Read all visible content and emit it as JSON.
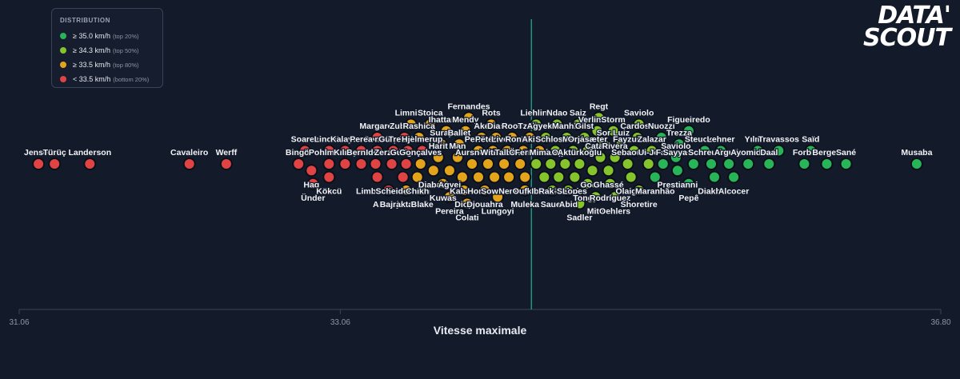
{
  "legend": {
    "title": "DISTRIBUTION",
    "items": [
      {
        "label": "≥ 35.0 km/h",
        "sub": "(top 20%)",
        "color": "#27b558"
      },
      {
        "label": "≥ 34.3 km/h",
        "sub": "(top 50%)",
        "color": "#86c42c"
      },
      {
        "label": "≥ 33.5 km/h",
        "sub": "(top 80%)",
        "color": "#e3a41b"
      },
      {
        "label": "< 33.5 km/h",
        "sub": "(bottom 20%)",
        "color": "#e04343"
      }
    ]
  },
  "logo": {
    "line1": "DATA'",
    "line2": "SCOUT"
  },
  "chart_data": {
    "type": "scatter",
    "xlabel": "Vitesse maximale",
    "xlim": [
      31.06,
      36.8
    ],
    "xticks": [
      "31.06",
      "33.06",
      "36.80"
    ],
    "median": 34.25,
    "points": [
      {
        "name": "Jensen",
        "x": 31.18,
        "c": "red"
      },
      {
        "name": "Türüç",
        "x": 31.28,
        "c": "red"
      },
      {
        "name": "Landerson",
        "x": 31.5,
        "c": "red"
      },
      {
        "name": "Cavaleiro",
        "x": 32.12,
        "c": "red"
      },
      {
        "name": "Werff",
        "x": 32.35,
        "c": "red"
      },
      {
        "name": "Bingöl",
        "x": 32.8,
        "c": "red"
      },
      {
        "name": "Pohlmann",
        "x": 32.99,
        "c": "red"
      },
      {
        "name": "Soares",
        "x": 32.84,
        "c": "red"
      },
      {
        "name": "Haq",
        "x": 32.88,
        "c": "red"
      },
      {
        "name": "Ünder",
        "x": 32.89,
        "c": "red"
      },
      {
        "name": "Lincoln",
        "x": 32.99,
        "c": "red"
      },
      {
        "name": "Kılınç",
        "x": 33.09,
        "c": "red"
      },
      {
        "name": "Kökcü",
        "x": 32.99,
        "c": "red"
      },
      {
        "name": "Kalaycı",
        "x": 33.09,
        "c": "red"
      },
      {
        "name": "Bernier",
        "x": 33.19,
        "c": "red"
      },
      {
        "name": "Gomes",
        "x": 33.29,
        "c": "red"
      },
      {
        "name": "Idelo",
        "x": 33.28,
        "c": "red"
      },
      {
        "name": "Perea",
        "x": 33.19,
        "c": "red"
      },
      {
        "name": "Limbombe",
        "x": 33.29,
        "c": "red"
      },
      {
        "name": "Margaret",
        "x": 33.29,
        "c": "red"
      },
      {
        "name": "Zerzinho",
        "x": 33.38,
        "c": "red"
      },
      {
        "name": "Arcanjo",
        "x": 33.36,
        "c": "red"
      },
      {
        "name": "Gürpüz",
        "x": 33.39,
        "c": "red"
      },
      {
        "name": "Trenskow",
        "x": 33.48,
        "c": "red"
      },
      {
        "name": "Scheidemann",
        "x": 33.45,
        "c": "red"
      },
      {
        "name": "Hjelmerup",
        "x": 33.57,
        "c": "red"
      },
      {
        "name": "Zubkov",
        "x": 33.46,
        "c": "red"
      },
      {
        "name": "Gudgon",
        "x": 33.47,
        "c": "red"
      },
      {
        "name": "Bajraktarević",
        "x": 33.47,
        "c": "yellow"
      },
      {
        "name": "Rashica",
        "x": 33.55,
        "c": "yellow"
      },
      {
        "name": "Limnios",
        "x": 33.5,
        "c": "yellow"
      },
      {
        "name": "Chikh",
        "x": 33.54,
        "c": "yellow"
      },
      {
        "name": "Blake",
        "x": 33.57,
        "c": "yellow"
      },
      {
        "name": "Gonçalves",
        "x": 33.56,
        "c": "yellow"
      },
      {
        "name": "Stoica",
        "x": 33.62,
        "c": "yellow"
      },
      {
        "name": "Diabaté",
        "x": 33.64,
        "c": "yellow"
      },
      {
        "name": "Suray",
        "x": 33.69,
        "c": "yellow"
      },
      {
        "name": "Harit",
        "x": 33.67,
        "c": "yellow"
      },
      {
        "name": "Kuwas",
        "x": 33.7,
        "c": "yellow"
      },
      {
        "name": "Ihattaren",
        "x": 33.72,
        "c": "yellow"
      },
      {
        "name": "Agyei",
        "x": 33.74,
        "c": "yellow"
      },
      {
        "name": "Pereira",
        "x": 33.74,
        "c": "yellow"
      },
      {
        "name": "Ballet",
        "x": 33.8,
        "c": "yellow"
      },
      {
        "name": "Man",
        "x": 33.79,
        "c": "yellow"
      },
      {
        "name": "Kabak",
        "x": 33.82,
        "c": "yellow"
      },
      {
        "name": "Diop",
        "x": 33.83,
        "c": "yellow"
      },
      {
        "name": "Fernandes",
        "x": 33.86,
        "c": "yellow"
      },
      {
        "name": "Mendy",
        "x": 33.84,
        "c": "yellow"
      },
      {
        "name": "Aursnes",
        "x": 33.88,
        "c": "yellow"
      },
      {
        "name": "Colati",
        "x": 33.85,
        "c": "yellow"
      },
      {
        "name": "Perišić",
        "x": 33.92,
        "c": "yellow"
      },
      {
        "name": "Horta",
        "x": 33.92,
        "c": "yellow"
      },
      {
        "name": "Aké",
        "x": 33.94,
        "c": "yellow"
      },
      {
        "name": "Djouahra",
        "x": 33.96,
        "c": "yellow"
      },
      {
        "name": "Witi",
        "x": 33.98,
        "c": "yellow"
      },
      {
        "name": "Rots",
        "x": 34.0,
        "c": "yellow"
      },
      {
        "name": "Petersen",
        "x": 34.01,
        "c": "yellow"
      },
      {
        "name": "Sowah",
        "x": 34.02,
        "c": "yellow"
      },
      {
        "name": "Dias",
        "x": 34.03,
        "c": "yellow"
      },
      {
        "name": "Lungoyi",
        "x": 34.04,
        "c": "yellow"
      },
      {
        "name": "Livolant",
        "x": 34.1,
        "c": "yellow"
      },
      {
        "name": "Talbi",
        "x": 34.08,
        "c": "yellow"
      },
      {
        "name": "Nene",
        "x": 34.11,
        "c": "yellow"
      },
      {
        "name": "Roos",
        "x": 34.13,
        "c": "yellow"
      },
      {
        "name": "Ömür",
        "x": 34.18,
        "c": "yellow"
      },
      {
        "name": "Rondoso",
        "x": 34.2,
        "c": "yellow"
      },
      {
        "name": "Oufkir",
        "x": 34.21,
        "c": "yellow"
      },
      {
        "name": "Tzolis",
        "x": 34.24,
        "c": "yellow"
      },
      {
        "name": "Akinsola",
        "x": 34.3,
        "c": "yellow"
      },
      {
        "name": "Muleka",
        "x": 34.21,
        "c": "yellow"
      },
      {
        "name": "Fernandes",
        "x": 34.28,
        "c": "green2"
      },
      {
        "name": "Liehline",
        "x": 34.28,
        "c": "green2"
      },
      {
        "name": "Ibuoré",
        "x": 34.33,
        "c": "green2"
      },
      {
        "name": "Agyekum",
        "x": 34.34,
        "c": "green2"
      },
      {
        "name": "Mimaroglu",
        "x": 34.37,
        "c": "green2"
      },
      {
        "name": "Rak-Sakyi",
        "x": 34.42,
        "c": "green2"
      },
      {
        "name": "Sauer",
        "x": 34.38,
        "c": "green2"
      },
      {
        "name": "Schlosser",
        "x": 34.4,
        "c": "green2"
      },
      {
        "name": "Manhlo",
        "x": 34.47,
        "c": "green2"
      },
      {
        "name": "Opoku",
        "x": 34.46,
        "c": "green2"
      },
      {
        "name": "Ndao",
        "x": 34.41,
        "c": "green2"
      },
      {
        "name": "Abid",
        "x": 34.48,
        "c": "green2"
      },
      {
        "name": "Lopes",
        "x": 34.52,
        "c": "green2"
      },
      {
        "name": "Mané",
        "x": 34.51,
        "c": "green2"
      },
      {
        "name": "Aktürkoğlu",
        "x": 34.55,
        "c": "green2"
      },
      {
        "name": "Sadler",
        "x": 34.55,
        "c": "green2"
      },
      {
        "name": "Saiz",
        "x": 34.54,
        "c": "green2"
      },
      {
        "name": "Gilst",
        "x": 34.58,
        "c": "green2"
      },
      {
        "name": "Orjasæter",
        "x": 34.6,
        "c": "green2"
      },
      {
        "name": "Godts",
        "x": 34.63,
        "c": "green2"
      },
      {
        "name": "Tongya",
        "x": 34.6,
        "c": "green2"
      },
      {
        "name": "Regt",
        "x": 34.67,
        "c": "green2"
      },
      {
        "name": "Mito",
        "x": 34.65,
        "c": "green2"
      },
      {
        "name": "Verlinden",
        "x": 34.66,
        "c": "green2"
      },
      {
        "name": "Catamo",
        "x": 34.68,
        "c": "green2"
      },
      {
        "name": "Sor",
        "x": 34.7,
        "c": "green2"
      },
      {
        "name": "Ghassé",
        "x": 34.73,
        "c": "green2"
      },
      {
        "name": "Storm",
        "x": 34.76,
        "c": "green2"
      },
      {
        "name": "Rivera",
        "x": 34.77,
        "c": "green2"
      },
      {
        "name": "Oehlers",
        "x": 34.77,
        "c": "green2"
      },
      {
        "name": "Luiz",
        "x": 34.81,
        "c": "green2"
      },
      {
        "name": "Rodríguez",
        "x": 34.74,
        "c": "green2"
      },
      {
        "name": "Sebaoui",
        "x": 34.85,
        "c": "green2"
      },
      {
        "name": "Olaigbe",
        "x": 34.87,
        "c": "green2"
      },
      {
        "name": "Fayzullaev",
        "x": 34.89,
        "c": "green2"
      },
      {
        "name": "Shoretire",
        "x": 34.92,
        "c": "green2"
      },
      {
        "name": "Cardoso",
        "x": 34.91,
        "c": "green2"
      },
      {
        "name": "Saviolo",
        "x": 34.92,
        "c": "green2"
      },
      {
        "name": "Ui-Jo",
        "x": 34.98,
        "c": "green2"
      },
      {
        "name": "Zalazar",
        "x": 35.0,
        "c": "green2"
      },
      {
        "name": "Maranhão",
        "x": 35.02,
        "c": "green1"
      },
      {
        "name": "Fall",
        "x": 35.07,
        "c": "green1"
      },
      {
        "name": "Nuozzi",
        "x": 35.06,
        "c": "green1"
      },
      {
        "name": "Saviolo",
        "x": 35.15,
        "c": "green1"
      },
      {
        "name": "Trezza",
        "x": 35.17,
        "c": "green1"
      },
      {
        "name": "Prestianni",
        "x": 35.16,
        "c": "green1"
      },
      {
        "name": "Pepê",
        "x": 35.23,
        "c": "green1"
      },
      {
        "name": "Sayyadmanesh",
        "x": 35.26,
        "c": "green1"
      },
      {
        "name": "Figueiredo",
        "x": 35.23,
        "c": "green1"
      },
      {
        "name": "Steuckers",
        "x": 35.33,
        "c": "green1"
      },
      {
        "name": "Diakhon",
        "x": 35.39,
        "c": "green1"
      },
      {
        "name": "Schreuders",
        "x": 35.37,
        "c": "green1"
      },
      {
        "name": "Lehner",
        "x": 35.43,
        "c": "green1"
      },
      {
        "name": "Arguilo",
        "x": 35.48,
        "c": "green1"
      },
      {
        "name": "Alcocer",
        "x": 35.51,
        "c": "green1"
      },
      {
        "name": "Ayomide",
        "x": 35.6,
        "c": "green1"
      },
      {
        "name": "Yılmaz",
        "x": 35.66,
        "c": "green1"
      },
      {
        "name": "Daal",
        "x": 35.73,
        "c": "green1"
      },
      {
        "name": "Travassos",
        "x": 35.79,
        "c": "green1"
      },
      {
        "name": "Forbs",
        "x": 35.95,
        "c": "green1"
      },
      {
        "name": "Saïd",
        "x": 35.99,
        "c": "green1"
      },
      {
        "name": "Bergen",
        "x": 36.09,
        "c": "green1"
      },
      {
        "name": "Sané",
        "x": 36.21,
        "c": "green1"
      },
      {
        "name": "Musaba",
        "x": 36.65,
        "c": "green1"
      }
    ]
  }
}
